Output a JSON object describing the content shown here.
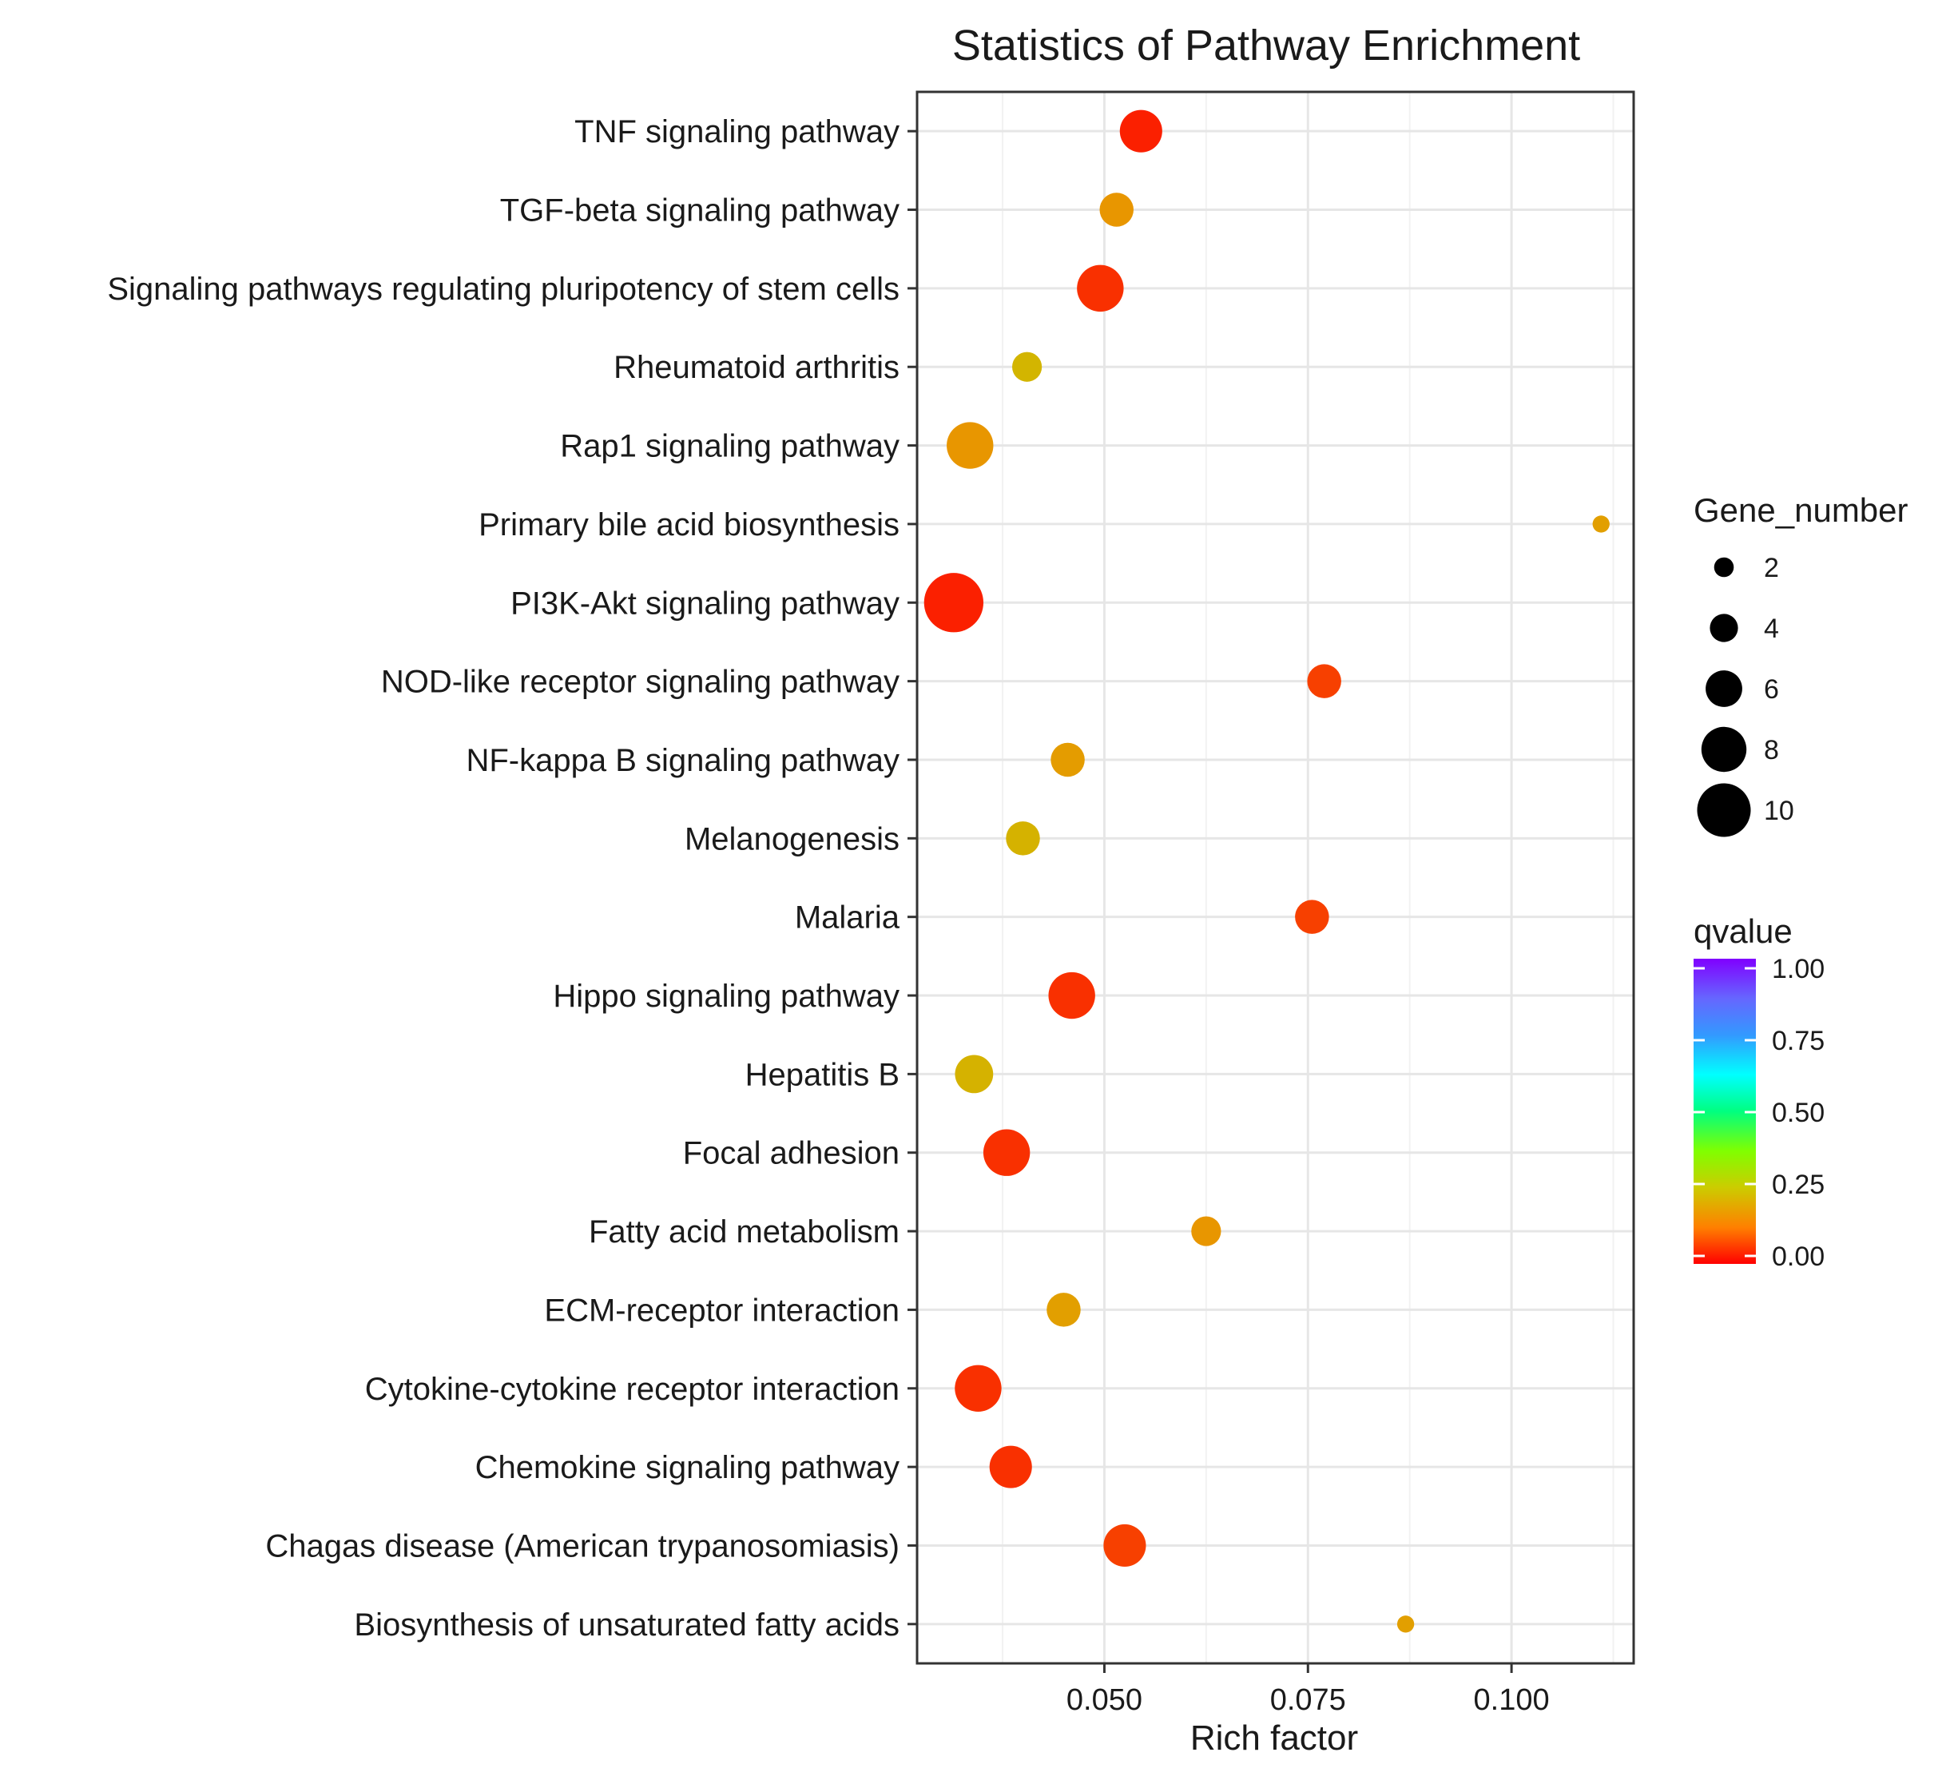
{
  "chart_data": {
    "type": "scatter",
    "title": "Statistics of Pathway Enrichment",
    "xlabel": "Rich factor",
    "ylabel": "",
    "xlim": [
      0.027,
      0.115
    ],
    "xticks": [
      0.05,
      0.075,
      0.1
    ],
    "xtick_labels": [
      "0.050",
      "0.075",
      "0.100"
    ],
    "grid": true,
    "categories": [
      "TNF signaling pathway",
      "TGF-beta signaling pathway",
      "Signaling pathways regulating pluripotency of stem cells",
      "Rheumatoid arthritis",
      "Rap1 signaling pathway",
      "Primary bile acid biosynthesis",
      "PI3K-Akt signaling pathway",
      "NOD-like receptor signaling pathway",
      "NF-kappa B signaling pathway",
      "Melanogenesis",
      "Malaria",
      "Hippo signaling pathway",
      "Hepatitis B",
      "Focal adhesion",
      "Fatty acid metabolism",
      "ECM-receptor interaction",
      "Cytokine-cytokine receptor interaction",
      "Chemokine signaling pathway",
      "Chagas disease (American trypanosomiasis)",
      "Biosynthesis of unsaturated fatty acids"
    ],
    "rich_factor": [
      0.0545,
      0.0515,
      0.0495,
      0.0405,
      0.0335,
      0.111,
      0.0315,
      0.077,
      0.0455,
      0.04,
      0.0755,
      0.046,
      0.034,
      0.038,
      0.0625,
      0.045,
      0.0345,
      0.0385,
      0.0525,
      0.087
    ],
    "gene_number": [
      7,
      5,
      8,
      4,
      8,
      1,
      11,
      5,
      5,
      5,
      5,
      8,
      6,
      8,
      4,
      5,
      8,
      7,
      7,
      1
    ],
    "qvalue": [
      0.02,
      0.12,
      0.03,
      0.22,
      0.12,
      0.15,
      0.02,
      0.04,
      0.14,
      0.21,
      0.04,
      0.03,
      0.21,
      0.03,
      0.12,
      0.15,
      0.03,
      0.03,
      0.04,
      0.15
    ],
    "legend": {
      "size_title": "Gene_number",
      "size_values": [
        2,
        4,
        6,
        8,
        10
      ],
      "size_labels": [
        "2",
        "4",
        "6",
        "8",
        "10"
      ],
      "color_title": "qvalue",
      "color_values": [
        1.0,
        0.75,
        0.5,
        0.25,
        0.0
      ],
      "color_labels": [
        "1.00",
        "0.75",
        "0.50",
        "0.25",
        "0.00"
      ],
      "placement": "right"
    }
  }
}
